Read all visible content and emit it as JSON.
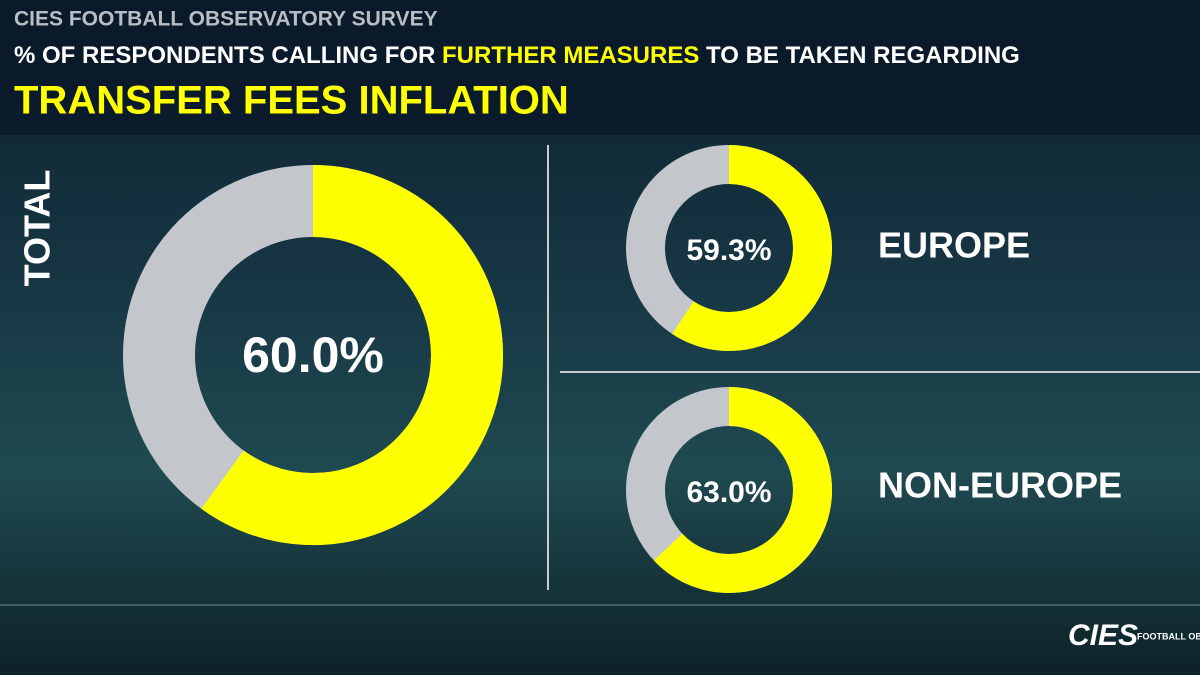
{
  "header": {
    "survey": "CIES FOOTBALL OBSERVATORY SURVEY",
    "subtitle_parts": [
      "% OF RESPONDENTS CALLING FOR ",
      "FURTHER MEASURES",
      " TO BE TAKEN REGARDING"
    ],
    "title": "TRANSFER FEES INFLATION"
  },
  "chart_data": [
    {
      "type": "donut",
      "title": "TOTAL",
      "values": [
        60.0
      ],
      "value_labels": [
        "60.0%"
      ],
      "ylim": [
        0,
        100
      ],
      "color": "#ffff00",
      "track_color": "#c3c7cc"
    },
    {
      "type": "donut",
      "title": "EUROPE",
      "values": [
        59.3
      ],
      "value_labels": [
        "59.3%"
      ],
      "ylim": [
        0,
        100
      ],
      "color": "#ffff00",
      "track_color": "#c3c7cc"
    },
    {
      "type": "donut",
      "title": "NON-EUROPE",
      "values": [
        63.0
      ],
      "value_labels": [
        "63.0%"
      ],
      "ylim": [
        0,
        100
      ],
      "color": "#ffff00",
      "track_color": "#c3c7cc"
    }
  ],
  "logo": {
    "name": "CIES",
    "tagline": "FOOTBALL OBSERVATORY"
  }
}
